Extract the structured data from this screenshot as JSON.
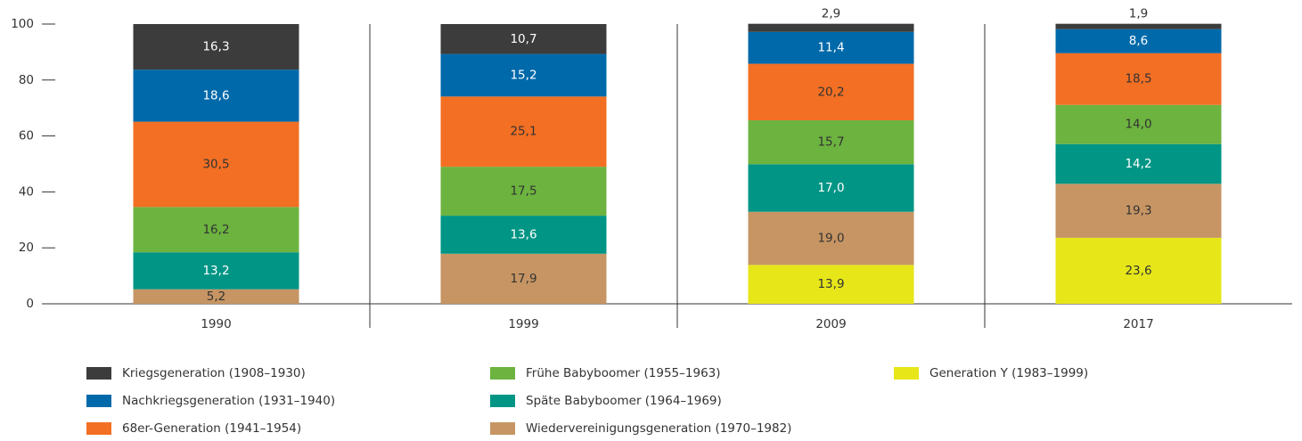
{
  "chart_data": {
    "type": "stacked_bar",
    "categories": [
      "1990",
      "1999",
      "2009",
      "2017"
    ],
    "ylim": [
      0,
      100
    ],
    "yticks": [
      0,
      20,
      40,
      60,
      80,
      100
    ],
    "series": [
      {
        "name": "Kriegsgeneration (1908–1930)",
        "color": "#3c3c3c",
        "values": [
          16.3,
          10.7,
          2.9,
          1.9
        ],
        "value_labels": [
          "16,3",
          "10,7",
          "2,9",
          "1,9"
        ]
      },
      {
        "name": "Nachkriegsgeneration (1931–1940)",
        "color": "#0069aa",
        "values": [
          18.6,
          15.2,
          11.4,
          8.6
        ],
        "value_labels": [
          "18,6",
          "15,2",
          "11,4",
          "8,6"
        ]
      },
      {
        "name": "68er-Generation (1941–1954)",
        "color": "#f26f23",
        "values": [
          30.5,
          25.1,
          20.2,
          18.5
        ],
        "value_labels": [
          "30,5",
          "25,1",
          "20,2",
          "18,5"
        ]
      },
      {
        "name": "Frühe Babyboomer (1955–1963)",
        "color": "#6cb33f",
        "values": [
          16.2,
          17.5,
          15.7,
          14.0
        ],
        "value_labels": [
          "16,2",
          "17,5",
          "15,7",
          "14,0"
        ]
      },
      {
        "name": "Späte Babyboomer (1964–1969)",
        "color": "#009585",
        "values": [
          13.2,
          13.6,
          17.0,
          14.2
        ],
        "value_labels": [
          "13,2",
          "13,6",
          "17,0",
          "14,2"
        ]
      },
      {
        "name": "Wiedervereinigungsgeneration (1970–1982)",
        "color": "#c69563",
        "values": [
          5.2,
          17.9,
          19.0,
          19.3
        ],
        "value_labels": [
          "5,2",
          "17,9",
          "19,0",
          "19,3"
        ]
      },
      {
        "name": "Generation Y (1983–1999)",
        "color": "#e6e619",
        "values": [
          null,
          null,
          13.9,
          23.6
        ],
        "value_labels": [
          null,
          null,
          "13,9",
          "23,6"
        ]
      }
    ]
  }
}
